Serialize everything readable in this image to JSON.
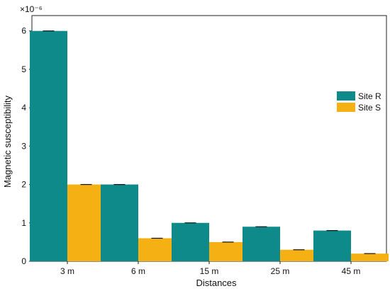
{
  "chart_data": {
    "type": "bar",
    "title": "",
    "xlabel": "Distances",
    "ylabel": "Magnetic susceptibility",
    "y_multiplier_label": "×10⁻⁶",
    "categories": [
      "3 m",
      "6 m",
      "15 m",
      "25 m",
      "45 m"
    ],
    "series": [
      {
        "name": "Site R",
        "color": "#0f8a8a",
        "values": [
          6.0,
          2.0,
          1.0,
          0.9,
          0.8
        ]
      },
      {
        "name": "Site S",
        "color": "#f5b014",
        "values": [
          2.0,
          0.6,
          0.5,
          0.3,
          0.2
        ]
      }
    ],
    "ylim": [
      0,
      6.4
    ],
    "yticks": [
      0,
      1,
      2,
      3,
      4,
      5,
      6
    ],
    "grid": false,
    "legend_position": "right",
    "error_bars": true
  }
}
